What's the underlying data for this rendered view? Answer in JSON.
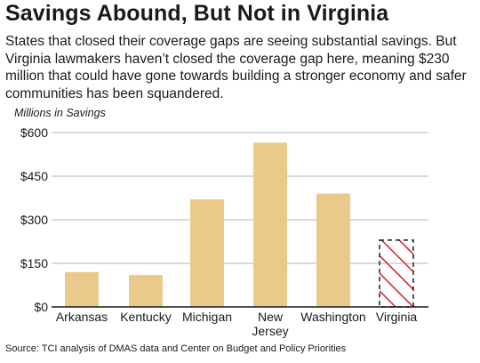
{
  "header": {
    "title": "Savings Abound, But Not in Virginia",
    "subtitle": "States that closed their coverage gaps are seeing substantial savings. But Virginia lawmakers haven’t closed the coverage gap here, meaning $230 million that could have gone towards building a stronger economy and safer communities has been squandered."
  },
  "footer": {
    "source": "Source: TCI analysis of DMAS data and Center on Budget and Policy Priorities"
  },
  "colors": {
    "bar": "#eac98a",
    "hatch": "#d42026",
    "grid": "#b5b5b5",
    "axis": "#1a1a1a"
  },
  "chart_data": {
    "type": "bar",
    "ylabel": "Millions in Savings",
    "ylim": [
      0,
      600
    ],
    "yticks": [
      0,
      150,
      300,
      450,
      600
    ],
    "ytick_labels": [
      "$0",
      "$150",
      "$300",
      "$450",
      "$600"
    ],
    "grid": true,
    "categories": [
      "Arkansas",
      "Kentucky",
      "Michigan",
      "New Jersey",
      "Washington",
      "Virginia"
    ],
    "category_label_lines": [
      [
        "Arkansas"
      ],
      [
        "Kentucky"
      ],
      [
        "Michigan"
      ],
      [
        "New",
        "Jersey"
      ],
      [
        "Washington"
      ],
      [
        "Virginia"
      ]
    ],
    "values": [
      120,
      110,
      370,
      565,
      390,
      230
    ],
    "styles": [
      "solid",
      "solid",
      "solid",
      "solid",
      "solid",
      "hatched-dashed-outline"
    ]
  }
}
